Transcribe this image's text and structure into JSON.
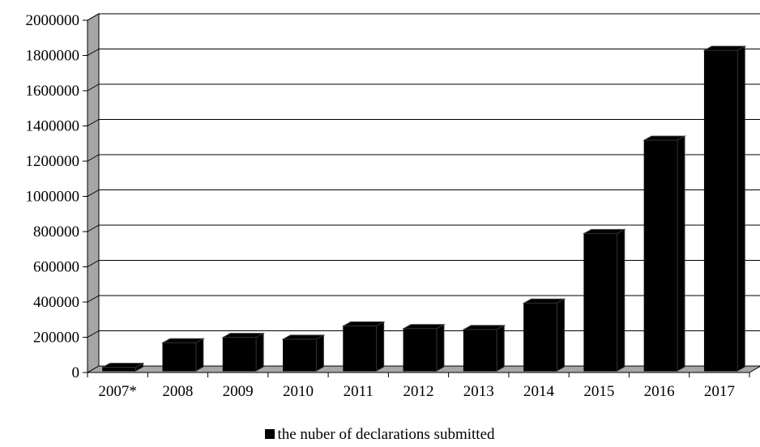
{
  "chart_data": {
    "type": "bar",
    "categories": [
      "2007*",
      "2008",
      "2009",
      "2010",
      "2011",
      "2012",
      "2013",
      "2014",
      "2015",
      "2016",
      "2017"
    ],
    "series": [
      {
        "name": "the nuber of declarations submitted",
        "values": [
          20000,
          160000,
          190000,
          180000,
          255000,
          240000,
          235000,
          385000,
          780000,
          1310000,
          1820000
        ],
        "color": "#000000"
      }
    ],
    "ylim": [
      0,
      2000000
    ],
    "yticks": [
      "0",
      "200000",
      "400000",
      "600000",
      "800000",
      "1000000",
      "1200000",
      "1400000",
      "1600000",
      "1800000",
      "2000000"
    ],
    "grid": true,
    "legend_position": "bottom",
    "style": "3d-column",
    "wall_color": "#a6a6a6",
    "floor_color": "#a6a6a6"
  }
}
